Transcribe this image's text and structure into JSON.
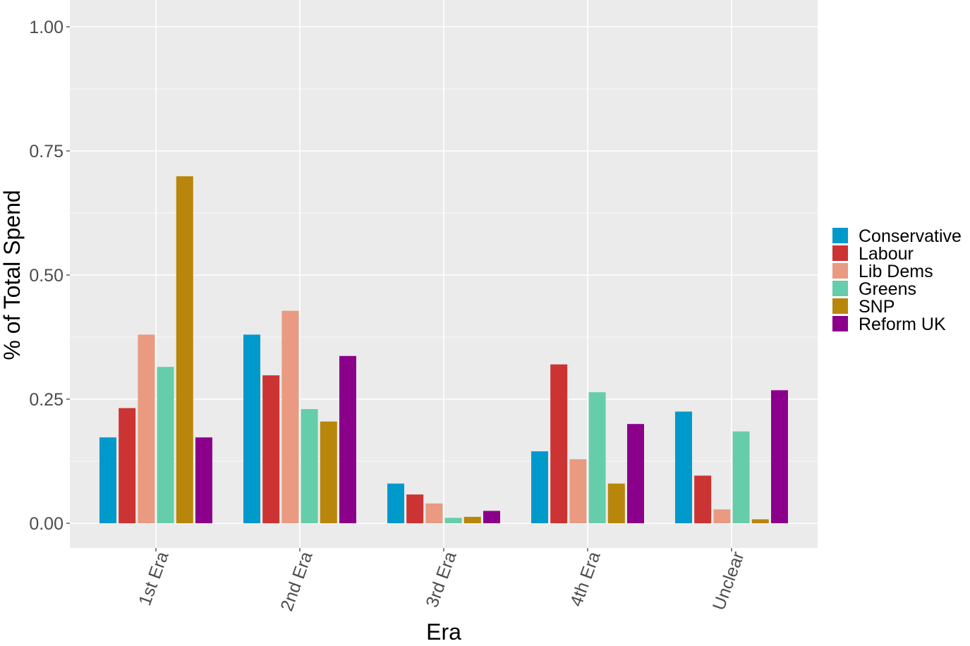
{
  "chart_data": {
    "type": "bar",
    "title": "",
    "xlabel": "Era",
    "ylabel": "% of Total Spend",
    "ylim": [
      -0.05,
      1.05
    ],
    "yticks": [
      0.0,
      0.25,
      0.5,
      0.75,
      1.0
    ],
    "ytick_labels": [
      "0.00",
      "0.25",
      "0.50",
      "0.75",
      "1.00"
    ],
    "categories": [
      "1st Era",
      "2nd Era",
      "3rd Era",
      "4th Era",
      "Unclear"
    ],
    "series": [
      {
        "name": "Conservative",
        "color": "#0099CC",
        "values": [
          0.173,
          0.38,
          0.08,
          0.145,
          0.225
        ]
      },
      {
        "name": "Labour",
        "color": "#CC3333",
        "values": [
          0.232,
          0.298,
          0.058,
          0.32,
          0.096
        ]
      },
      {
        "name": "Lib Dems",
        "color": "#E99A80",
        "values": [
          0.38,
          0.428,
          0.04,
          0.129,
          0.028
        ]
      },
      {
        "name": "Greens",
        "color": "#66CDAA",
        "values": [
          0.315,
          0.23,
          0.011,
          0.264,
          0.185
        ]
      },
      {
        "name": "SNP",
        "color": "#B8860B",
        "values": [
          0.699,
          0.205,
          0.013,
          0.08,
          0.008
        ]
      },
      {
        "name": "Reform UK",
        "color": "#8B008B",
        "values": [
          0.173,
          0.337,
          0.025,
          0.2,
          0.268
        ]
      }
    ],
    "grid": true,
    "legend_position": "right"
  }
}
